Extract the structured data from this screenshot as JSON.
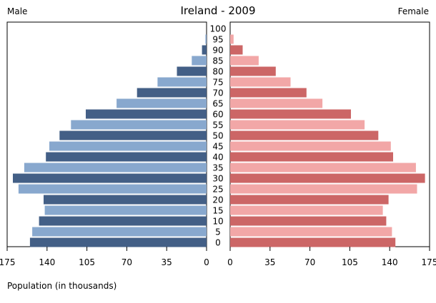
{
  "chart_data": {
    "type": "bar",
    "orientation": "horizontal",
    "title": "Ireland - 2009",
    "left_label": "Male",
    "right_label": "Female",
    "xlabel": "Population (in thousands)",
    "xlim": [
      0,
      175
    ],
    "x_ticks": [
      0,
      35,
      70,
      105,
      140,
      175
    ],
    "x_tick_labels_left": [
      "175",
      "140",
      "105",
      "70",
      "35",
      "0"
    ],
    "x_tick_labels_right": [
      "0",
      "35",
      "70",
      "105",
      "140",
      "175"
    ],
    "categories": [
      "0",
      "5",
      "10",
      "15",
      "20",
      "25",
      "30",
      "35",
      "40",
      "45",
      "50",
      "55",
      "60",
      "65",
      "70",
      "75",
      "80",
      "85",
      "90",
      "95",
      "100"
    ],
    "series": [
      {
        "name": "Male",
        "values": [
          155,
          153,
          147,
          142,
          143,
          165,
          170,
          160,
          141,
          138,
          129,
          119,
          106,
          79,
          61,
          43,
          26,
          13,
          4,
          1,
          0
        ],
        "colors": [
          "#435f86",
          "#88a8ce"
        ]
      },
      {
        "name": "Female",
        "values": [
          145,
          142,
          137,
          134,
          139,
          164,
          171,
          163,
          143,
          141,
          130,
          118,
          106,
          81,
          67,
          53,
          40,
          25,
          11,
          3,
          0
        ],
        "colors": [
          "#cc6666",
          "#f2a7a7"
        ]
      }
    ],
    "grid": false,
    "legend": "none"
  }
}
